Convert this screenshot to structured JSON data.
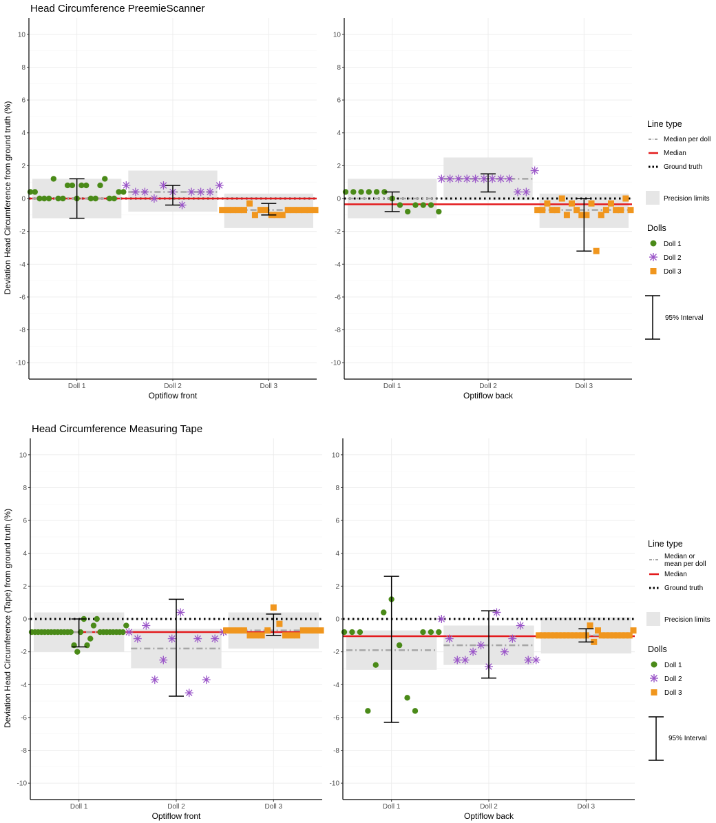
{
  "chart_data": [
    {
      "type": "scatter",
      "title": "Head Circumference PreemieScanner",
      "ylabel": "Deviation Head Circumference from ground truth (%)",
      "ylim": [
        -11,
        11
      ],
      "yticks": [
        10,
        8,
        6,
        4,
        2,
        0,
        -2,
        -4,
        -6,
        -8,
        -10
      ],
      "categories": [
        "Doll 1",
        "Doll 2",
        "Doll 3"
      ],
      "legend": {
        "line_title": "Line type",
        "line_items": [
          {
            "label": "Median per doll",
            "style": "dashdot",
            "color": "#a6a6a6"
          },
          {
            "label": "Median",
            "style": "solid",
            "color": "#e31a1c"
          },
          {
            "label": "Ground truth",
            "style": "dotted",
            "color": "#000000"
          }
        ],
        "precision_label": "Precision limits",
        "dolls_title": "Dolls",
        "doll_items": [
          {
            "label": "Doll 1",
            "shape": "circle",
            "color": "#4a8a18"
          },
          {
            "label": "Doll 2",
            "shape": "asterisk",
            "color": "#9a55c8"
          },
          {
            "label": "Doll 3",
            "shape": "square",
            "color": "#f0961e"
          }
        ],
        "interval_label": "95% Interval"
      },
      "panels": [
        {
          "xlabel": "Optiflow front",
          "median": 0,
          "dolls": [
            {
              "name": "Doll 1",
              "values": [
                0.4,
                0.4,
                0,
                0,
                0,
                1.2,
                0,
                0,
                0.8,
                0.8,
                0,
                0.8,
                0.8,
                0,
                0,
                0.8,
                1.2,
                0,
                0,
                0.4,
                0.4
              ],
              "median": 0,
              "precision": [
                -1.2,
                1.2
              ],
              "interval": [
                -1.2,
                1.2
              ]
            },
            {
              "name": "Doll 2",
              "values": [
                0.8,
                0.4,
                0.4,
                0,
                0.8,
                0.4,
                -0.4,
                0.4,
                0.4,
                0.4,
                0.8
              ],
              "median": 0.4,
              "precision": [
                -0.8,
                1.7
              ],
              "interval": [
                -0.4,
                0.8
              ]
            },
            {
              "name": "Doll 3",
              "values": [
                -0.7,
                -0.7,
                -0.7,
                -0.7,
                -0.7,
                -0.3,
                -1.0,
                -0.7,
                -0.7,
                -1.0,
                -1.0,
                -1.0,
                -0.7,
                -0.7,
                -0.7,
                -0.7,
                -0.7,
                -0.7
              ],
              "median": -0.7,
              "precision": [
                -1.8,
                0.3
              ],
              "interval": [
                -1.0,
                -0.3
              ]
            }
          ]
        },
        {
          "xlabel": "Optiflow back",
          "median": -0.35,
          "dolls": [
            {
              "name": "Doll 1",
              "values": [
                0.4,
                0.4,
                0.4,
                0.4,
                0.4,
                0.4,
                0,
                -0.4,
                -0.8,
                -0.4,
                -0.4,
                -0.4,
                -0.8
              ],
              "median": 0,
              "precision": [
                -1.2,
                1.2
              ],
              "interval": [
                -0.8,
                0.4
              ]
            },
            {
              "name": "Doll 2",
              "values": [
                1.2,
                1.2,
                1.2,
                1.2,
                1.2,
                1.2,
                1.2,
                1.2,
                1.2,
                0.4,
                0.4,
                1.7
              ],
              "median": 1.2,
              "precision": [
                -0.1,
                2.5
              ],
              "interval": [
                0.4,
                1.5
              ]
            },
            {
              "name": "Doll 3",
              "values": [
                -0.7,
                -0.7,
                -0.3,
                -0.7,
                -0.7,
                0,
                -1.0,
                -0.3,
                -0.7,
                -1.0,
                -1.0,
                -0.3,
                -3.2,
                -1.0,
                -0.7,
                -0.3,
                -0.7,
                -0.7,
                0,
                -0.7
              ],
              "median": -0.7,
              "precision": [
                -1.8,
                0.3
              ],
              "interval": [
                -3.2,
                0
              ]
            }
          ]
        }
      ]
    },
    {
      "type": "scatter",
      "title": "Head Circumference Measuring Tape",
      "ylabel": "Deviation Head Circumference (Tape) from ground truth (%)",
      "ylim": [
        -11,
        11
      ],
      "yticks": [
        10,
        8,
        6,
        4,
        2,
        0,
        -2,
        -4,
        -6,
        -8,
        -10
      ],
      "categories": [
        "Doll 1",
        "Doll 2",
        "Doll 3"
      ],
      "legend": {
        "line_title": "Line type",
        "line_items": [
          {
            "label": "Median or mean per doll",
            "label_lines": [
              "Median or",
              "mean per doll"
            ],
            "style": "dashdot",
            "color": "#a6a6a6"
          },
          {
            "label": "Median",
            "style": "solid",
            "color": "#e31a1c"
          },
          {
            "label": "Ground truth",
            "style": "dotted",
            "color": "#000000"
          }
        ],
        "precision_label": "Precision limits",
        "dolls_title": "Dolls",
        "doll_items": [
          {
            "label": "Doll 1",
            "shape": "circle",
            "color": "#4a8a18"
          },
          {
            "label": "Doll 2",
            "shape": "asterisk",
            "color": "#9a55c8"
          },
          {
            "label": "Doll 3",
            "shape": "square",
            "color": "#f0961e"
          }
        ],
        "interval_label": "95% Interval"
      },
      "panels": [
        {
          "xlabel": "Optiflow front",
          "median": -0.8,
          "dolls": [
            {
              "name": "Doll 1",
              "values": [
                -0.8,
                -0.8,
                -0.8,
                -0.8,
                -0.8,
                -0.8,
                -0.8,
                -0.8,
                -0.8,
                -0.8,
                -0.8,
                -0.8,
                -0.8,
                -1.6,
                -2.0,
                -0.8,
                0,
                -1.6,
                -1.2,
                -0.4,
                0,
                -0.8,
                -0.8,
                -0.8,
                -0.8,
                -0.8,
                -0.8,
                -0.8,
                -0.8,
                -0.4
              ],
              "median": -0.8,
              "precision": [
                -2.0,
                0.4
              ],
              "interval": [
                -1.7,
                0
              ]
            },
            {
              "name": "Doll 2",
              "values": [
                -0.8,
                -1.2,
                -0.4,
                -3.7,
                -2.5,
                -1.2,
                0.4,
                -4.5,
                -1.2,
                -3.7,
                -1.2,
                -0.8
              ],
              "median": -1.8,
              "precision": [
                -3.0,
                -0.6
              ],
              "interval": [
                -4.7,
                1.2
              ]
            },
            {
              "name": "Doll 3",
              "values": [
                -0.7,
                -0.7,
                -0.7,
                -0.7,
                -1.0,
                -1.0,
                -1.0,
                -0.7,
                0.7,
                -0.3,
                -1.0,
                -1.0,
                -1.0,
                -0.7,
                -0.7,
                -0.7,
                -0.7
              ],
              "median": -0.7,
              "precision": [
                -1.8,
                0.4
              ],
              "interval": [
                -1.0,
                0.3
              ]
            }
          ]
        },
        {
          "xlabel": "Optiflow back",
          "median": -1.05,
          "dolls": [
            {
              "name": "Doll 1",
              "values": [
                -0.8,
                -0.8,
                -0.8,
                -5.6,
                -2.8,
                0.4,
                1.2,
                -1.6,
                -4.8,
                -5.6,
                -0.8,
                -0.8,
                -0.8
              ],
              "median": -1.9,
              "precision": [
                -3.1,
                -0.7
              ],
              "interval": [
                -6.3,
                2.6
              ]
            },
            {
              "name": "Doll 2",
              "values": [
                0,
                -1.2,
                -2.5,
                -2.5,
                -2.0,
                -1.6,
                -2.9,
                0.4,
                -2.0,
                -1.2,
                -0.4,
                -2.5,
                -2.5
              ],
              "median": -1.6,
              "precision": [
                -2.8,
                -0.4
              ],
              "interval": [
                -3.6,
                0.5
              ]
            },
            {
              "name": "Doll 3",
              "values": [
                -1.0,
                -1.0,
                -1.0,
                -1.0,
                -1.0,
                -1.0,
                -1.0,
                -1.0,
                -1.0,
                -1.0,
                -1.0,
                -1.0,
                -1.0,
                -0.4,
                -1.4,
                -0.7,
                -1.0,
                -1.0,
                -1.0,
                -1.0,
                -1.0,
                -1.0,
                -1.0,
                -1.0,
                -0.7
              ],
              "median": -1.0,
              "precision": [
                -2.1,
                0.1
              ],
              "interval": [
                -1.4,
                -0.6
              ]
            }
          ]
        }
      ]
    }
  ]
}
